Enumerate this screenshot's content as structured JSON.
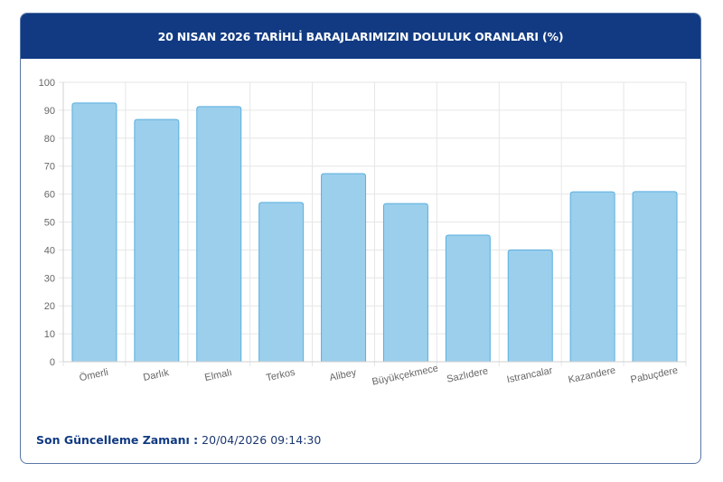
{
  "header": {
    "title": "20 NISAN 2026 TARİHLİ BARAJLARIMIZIN DOLULUK ORANLARI (%)"
  },
  "footer": {
    "label": "Son Güncelleme Zamanı :",
    "value": "20/04/2026 09:14:30"
  },
  "colors": {
    "header_bg": "#113a82",
    "bar_fill": "#9bcfec",
    "bar_border": "#5aafe0",
    "grid": "#e6e6e6",
    "axis_text": "#666666"
  },
  "chart_data": {
    "type": "bar",
    "title": "20 NISAN 2026 TARİHLİ BARAJLARIMIZIN DOLULUK ORANLARI (%)",
    "xlabel": "",
    "ylabel": "",
    "ylim": [
      0,
      100
    ],
    "yticks": [
      0,
      10,
      20,
      30,
      40,
      50,
      60,
      70,
      80,
      90,
      100
    ],
    "grid": true,
    "legend": "none",
    "categories": [
      "Ömerli",
      "Darlık",
      "Elmalı",
      "Terkos",
      "Alibey",
      "Büyükçekmece",
      "Sazlıdere",
      "Istrancalar",
      "Kazandere",
      "Pabuçdere"
    ],
    "values": [
      92.6,
      86.7,
      91.3,
      57.0,
      67.3,
      56.6,
      45.3,
      40.0,
      60.8,
      60.9
    ]
  }
}
